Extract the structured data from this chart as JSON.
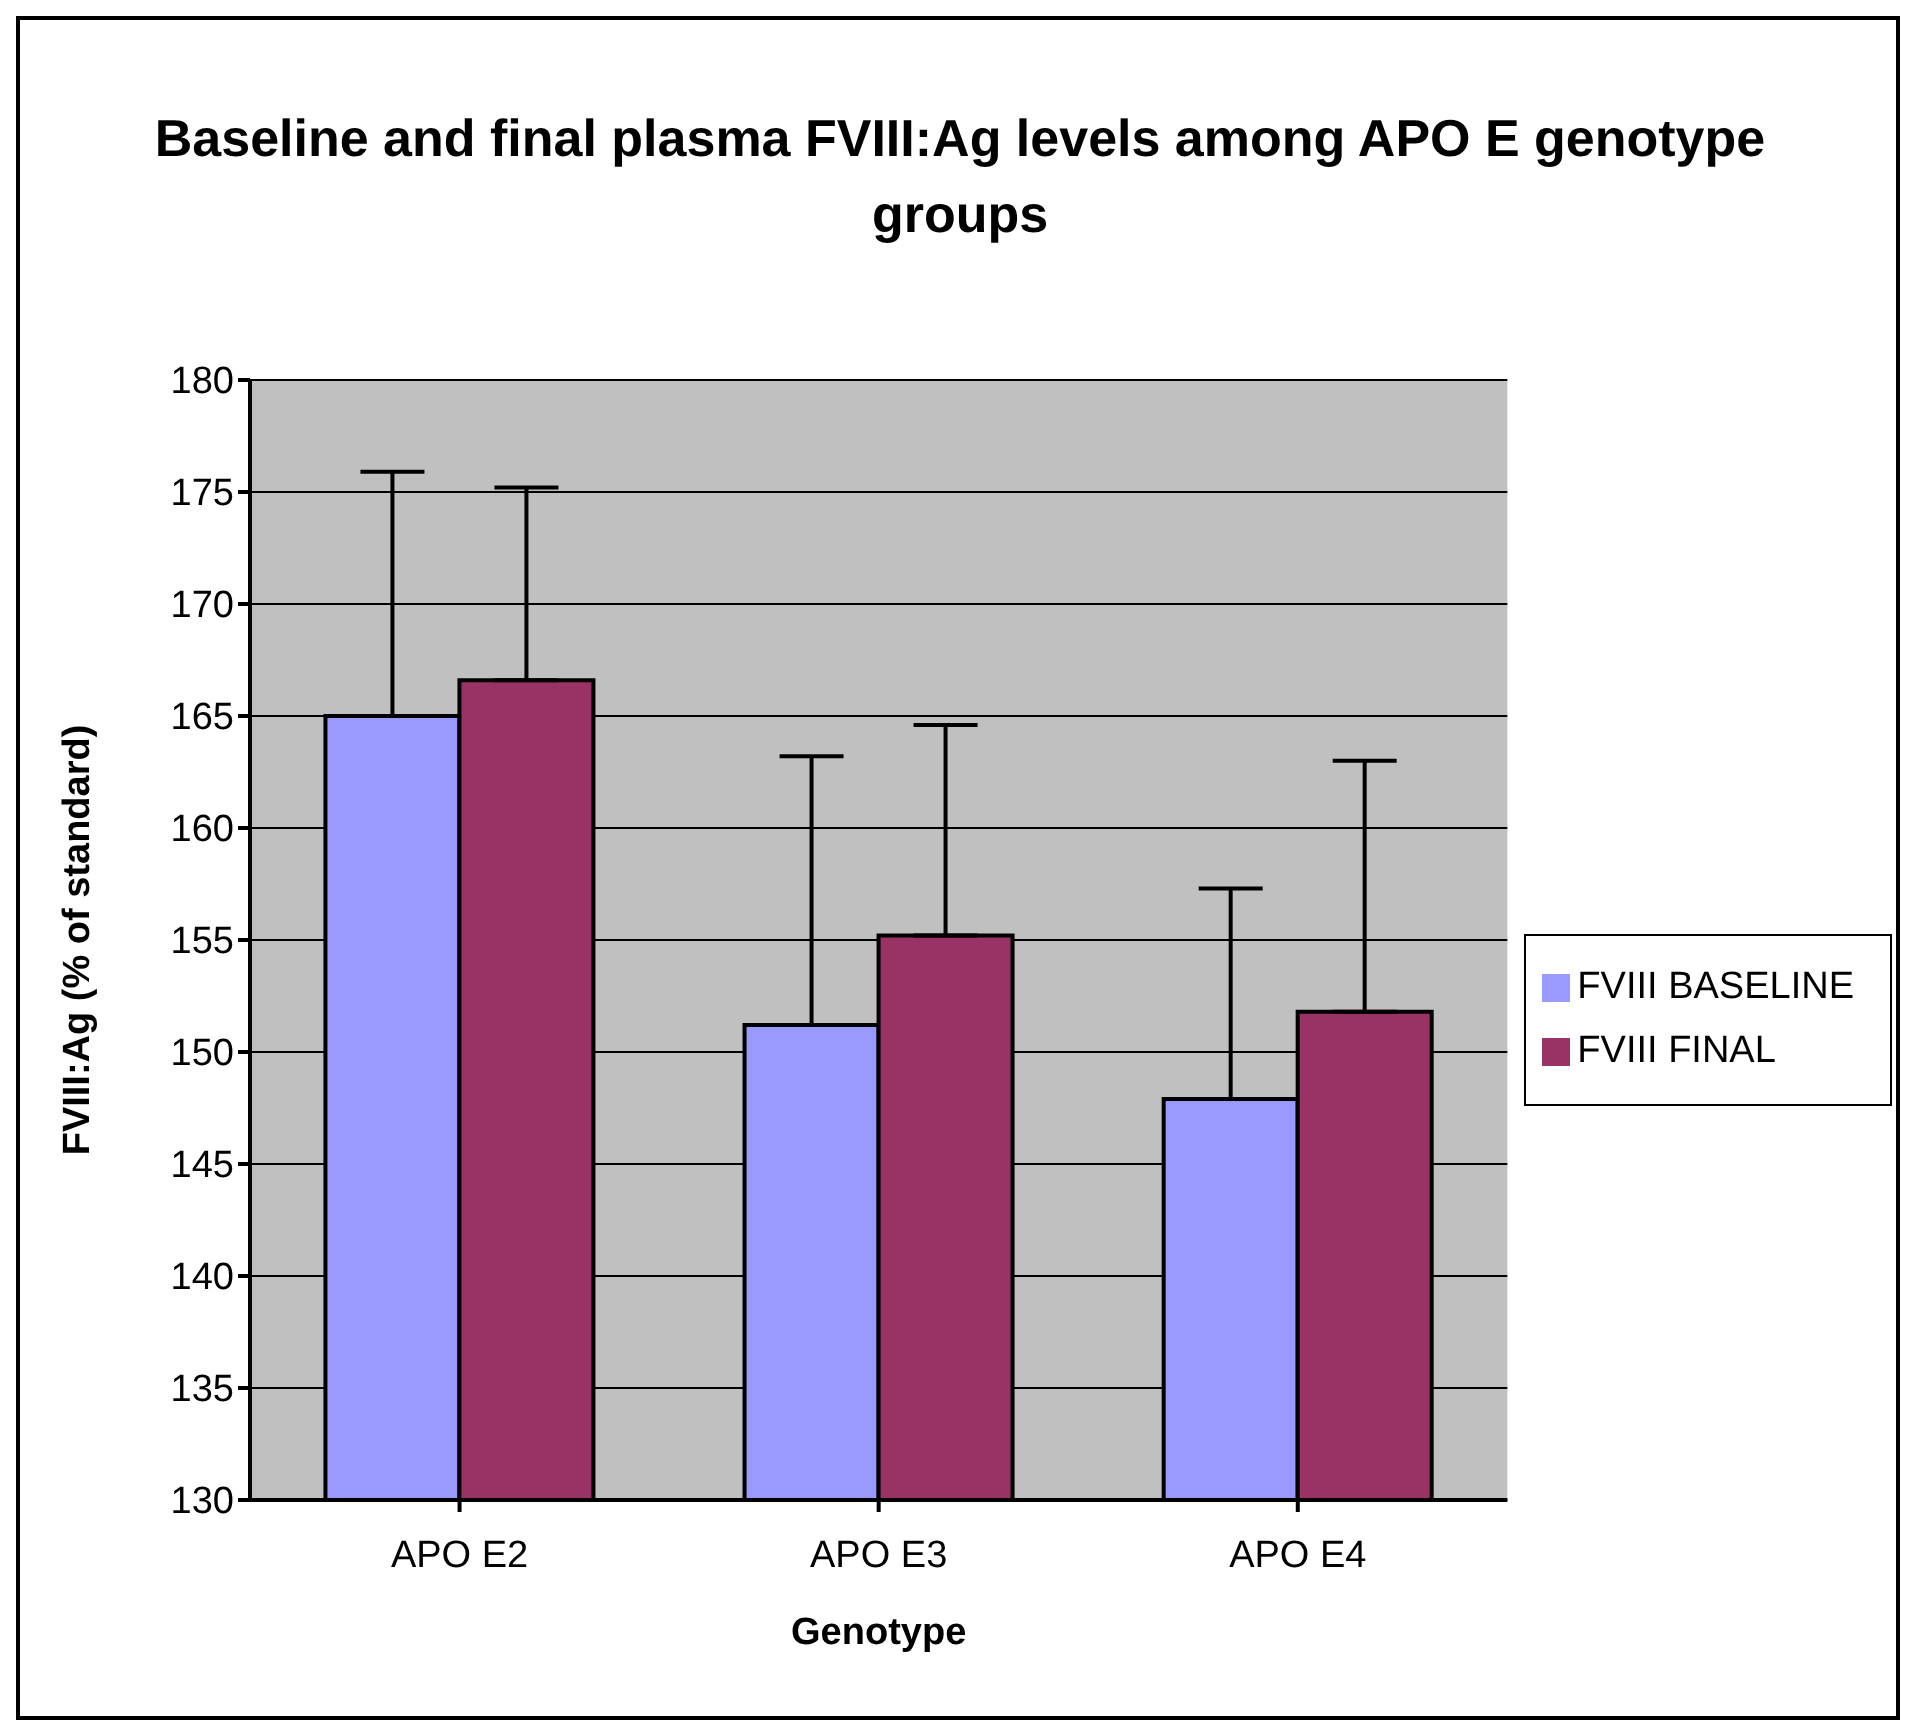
{
  "chart_data": {
    "type": "bar",
    "title": "Baseline and final plasma FVIII:Ag levels among APO E genotype groups",
    "xlabel": "Genotype",
    "ylabel": "FVIII:Ag (% of standard)",
    "categories": [
      "APO E2",
      "APO E3",
      "APO E4"
    ],
    "series": [
      {
        "name": "FVIII BASELINE",
        "color": "#9999ff",
        "values": [
          165,
          151.2,
          147.9
        ],
        "errors": [
          [
            165,
            175.9
          ],
          [
            151.2,
            163.2
          ],
          [
            147.9,
            157.3
          ]
        ]
      },
      {
        "name": "FVIII FINAL",
        "color": "#993366",
        "values": [
          166.6,
          155.2,
          151.8
        ],
        "errors": [
          [
            166.6,
            175.2
          ],
          [
            155.2,
            164.6
          ],
          [
            151.8,
            163.0
          ]
        ]
      }
    ],
    "ylim": [
      130,
      180
    ],
    "yticks": [
      130,
      135,
      140,
      145,
      150,
      155,
      160,
      165,
      170,
      175,
      180
    ],
    "grid": "y",
    "legend": "right"
  }
}
